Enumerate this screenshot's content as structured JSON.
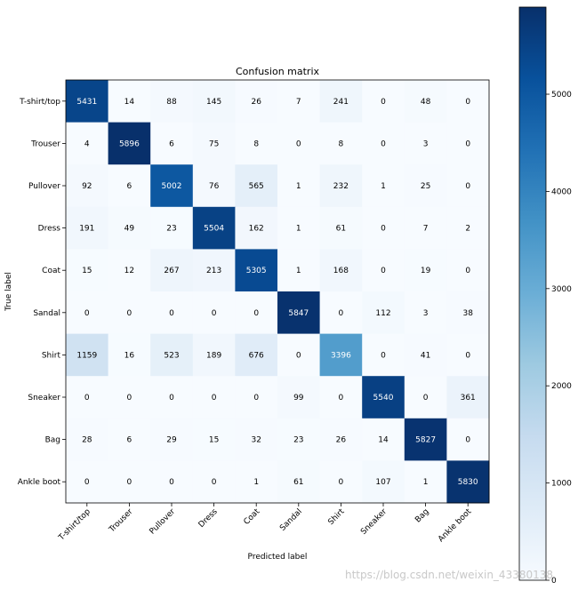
{
  "chart_data": {
    "type": "heatmap",
    "title": "Confusion matrix",
    "xlabel": "Predicted label",
    "ylabel": "True label",
    "row_labels": [
      "T-shirt/top",
      "Trouser",
      "Pullover",
      "Dress",
      "Coat",
      "Sandal",
      "Shirt",
      "Sneaker",
      "Bag",
      "Ankle boot"
    ],
    "col_labels": [
      "T-shirt/top",
      "Trouser",
      "Pullover",
      "Dress",
      "Coat",
      "Sandal",
      "Shirt",
      "Sneaker",
      "Bag",
      "Ankle boot"
    ],
    "values": [
      [
        5431,
        14,
        88,
        145,
        26,
        7,
        241,
        0,
        48,
        0
      ],
      [
        4,
        5896,
        6,
        75,
        8,
        0,
        8,
        0,
        3,
        0
      ],
      [
        92,
        6,
        5002,
        76,
        565,
        1,
        232,
        1,
        25,
        0
      ],
      [
        191,
        49,
        23,
        5504,
        162,
        1,
        61,
        0,
        7,
        2
      ],
      [
        15,
        12,
        267,
        213,
        5305,
        1,
        168,
        0,
        19,
        0
      ],
      [
        0,
        0,
        0,
        0,
        0,
        5847,
        0,
        112,
        3,
        38
      ],
      [
        1159,
        16,
        523,
        189,
        676,
        0,
        3396,
        0,
        41,
        0
      ],
      [
        0,
        0,
        0,
        0,
        0,
        99,
        0,
        5540,
        0,
        361
      ],
      [
        28,
        6,
        29,
        15,
        32,
        23,
        26,
        14,
        5827,
        0
      ],
      [
        0,
        0,
        0,
        0,
        1,
        61,
        0,
        107,
        1,
        5830
      ]
    ],
    "colormap": "Blues",
    "colorbar": {
      "range": [
        0,
        5896
      ],
      "ticks": [
        0,
        1000,
        2000,
        3000,
        4000,
        5000
      ]
    }
  },
  "watermark": "https://blog.csdn.net/weixin_43380138"
}
